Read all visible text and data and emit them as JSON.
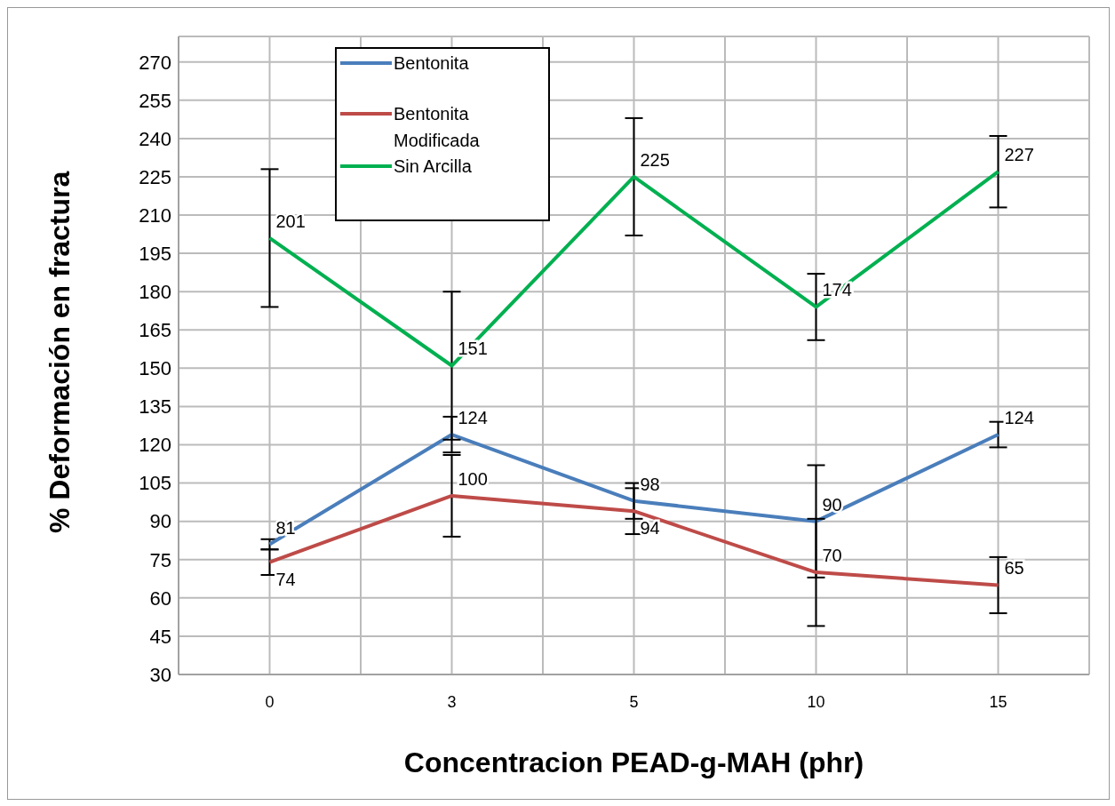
{
  "chart_data": {
    "type": "line",
    "xlabel": "Concentracion PEAD-g-MAH (phr)",
    "ylabel": "% Deformación en fractura",
    "categories": [
      "0",
      "3",
      "5",
      "10",
      "15"
    ],
    "series": [
      {
        "name": "Bentonita",
        "color": "#4a7ebb",
        "values": [
          81,
          124,
          98,
          90,
          124
        ],
        "errors": [
          2,
          7,
          7,
          22,
          5
        ]
      },
      {
        "name": "Bentonita Modificada",
        "color": "#be4b48",
        "values": [
          74,
          100,
          94,
          70,
          65
        ],
        "errors": [
          5,
          16,
          9,
          21,
          11
        ]
      },
      {
        "name": "Sin Arcilla",
        "color": "#00b050",
        "values": [
          201,
          151,
          225,
          174,
          227
        ],
        "errors": [
          27,
          29,
          23,
          13,
          14
        ]
      }
    ],
    "ylim": [
      30,
      280
    ],
    "yticks": [
      30,
      45,
      60,
      75,
      90,
      105,
      120,
      135,
      150,
      165,
      180,
      195,
      210,
      225,
      240,
      255,
      270
    ],
    "grid": true,
    "legend": "top left",
    "marker": "none",
    "line_style": "solid",
    "data_labels": true
  }
}
